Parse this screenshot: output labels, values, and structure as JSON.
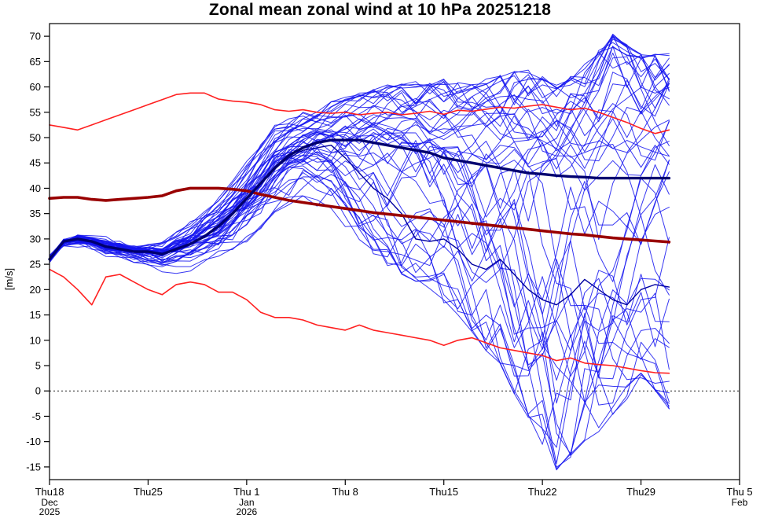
{
  "chart_data": {
    "type": "line",
    "title": "Zonal mean zonal wind at 10 hPa 20251218",
    "xlabel": "",
    "ylabel": "[m/s]",
    "ylim": [
      -17.5,
      72.5
    ],
    "yticks": [
      -15,
      -10,
      -5,
      0,
      5,
      10,
      15,
      20,
      25,
      30,
      35,
      40,
      45,
      50,
      55,
      60,
      65,
      70
    ],
    "zero_line": 0,
    "x_axis_days_total": 49,
    "xticks": [
      {
        "day": 0,
        "label": "Thu18",
        "sub": [
          "Dec",
          "2025"
        ]
      },
      {
        "day": 7,
        "label": "Thu25",
        "sub": []
      },
      {
        "day": 14,
        "label": "Thu 1",
        "sub": [
          "Jan",
          "2026"
        ]
      },
      {
        "day": 21,
        "label": "Thu 8",
        "sub": []
      },
      {
        "day": 28,
        "label": "Thu15",
        "sub": []
      },
      {
        "day": 35,
        "label": "Thu22",
        "sub": []
      },
      {
        "day": 42,
        "label": "Thu29",
        "sub": []
      },
      {
        "day": 49,
        "label": "Thu 5",
        "sub": [
          "Feb"
        ]
      }
    ],
    "days": [
      0,
      1,
      2,
      3,
      4,
      5,
      6,
      7,
      8,
      9,
      10,
      11,
      12,
      13,
      14,
      15,
      16,
      17,
      18,
      19,
      20,
      21,
      22,
      23,
      24,
      25,
      26,
      27,
      28,
      29,
      30,
      31,
      32,
      33,
      34,
      35,
      36,
      37,
      38,
      39,
      40,
      41,
      42,
      43,
      44
    ],
    "series": [
      {
        "name": "climate-max",
        "color": "#ff2020",
        "width": 1.6,
        "values": [
          52.5,
          52,
          51.5,
          52.5,
          53.5,
          54.5,
          55.5,
          56.5,
          57.5,
          58.5,
          58.8,
          58.8,
          57.6,
          57.2,
          57,
          56.5,
          55.5,
          55.2,
          55.5,
          55,
          54.8,
          55,
          54.5,
          54.8,
          55,
          54.5,
          54.8,
          55.2,
          54.6,
          55.4,
          55.2,
          55.6,
          56,
          55.8,
          56.2,
          56.5,
          56,
          55.5,
          55.8,
          55,
          54,
          53,
          51.8,
          50.8,
          51.5
        ]
      },
      {
        "name": "climate-min",
        "color": "#ff2020",
        "width": 1.6,
        "values": [
          24,
          22.5,
          20,
          17,
          22.5,
          23,
          21.5,
          20,
          19,
          21,
          21.5,
          21,
          19.5,
          19.5,
          18,
          15.5,
          14.5,
          14.5,
          14,
          13,
          12.5,
          12,
          13,
          12,
          11.5,
          11,
          10.5,
          10,
          9,
          10,
          10.5,
          9.5,
          8.5,
          8,
          7.5,
          7,
          6,
          6.5,
          5.5,
          5.2,
          5,
          4.5,
          4,
          3.6,
          3.5
        ]
      },
      {
        "name": "control-member",
        "color": "#0000a0",
        "width": 1.4,
        "values": [
          26,
          29.5,
          30,
          29.5,
          28.5,
          28,
          27.5,
          27.5,
          27,
          28,
          29,
          30.5,
          32.5,
          35,
          38,
          41,
          44,
          46,
          47.5,
          48,
          48.5,
          46,
          43,
          40,
          38,
          35,
          30,
          29.5,
          30,
          28,
          25,
          24,
          26,
          23,
          20,
          18,
          17,
          19,
          22,
          20,
          18,
          17,
          20,
          21,
          20.5
        ]
      },
      {
        "name": "climate-mean",
        "color": "#990000",
        "width": 3.6,
        "values": [
          38,
          38.2,
          38.2,
          37.8,
          37.6,
          37.8,
          38,
          38.2,
          38.5,
          39.5,
          40,
          40,
          40,
          39.8,
          39.5,
          38.8,
          38.2,
          37.6,
          37.2,
          36.8,
          36.4,
          36,
          35.6,
          35.2,
          34.9,
          34.6,
          34.3,
          34,
          33.7,
          33.4,
          33.1,
          32.8,
          32.5,
          32.2,
          31.9,
          31.6,
          31.3,
          31,
          30.8,
          30.5,
          30.2,
          30,
          29.8,
          29.6,
          29.4
        ]
      },
      {
        "name": "ensemble-mean",
        "color": "#000070",
        "width": 3.4,
        "values": [
          26,
          29.5,
          30,
          29.5,
          28.5,
          28,
          27.5,
          27.5,
          27,
          28,
          29,
          30.5,
          32.5,
          35,
          38,
          41,
          44,
          46.5,
          48,
          49,
          49.5,
          49.5,
          49.5,
          49,
          48.5,
          48,
          47.5,
          47,
          46,
          45.5,
          45,
          44.5,
          44,
          43.5,
          43,
          42.8,
          42.5,
          42.3,
          42.2,
          42,
          42,
          42,
          42,
          42,
          42
        ]
      }
    ],
    "ensemble": {
      "name": "ensemble-members",
      "color": "#1414f0",
      "width": 1,
      "opacity": 0.85,
      "count": 48,
      "seed": 20251218,
      "walk_step": 0.3,
      "jitter": 0.6,
      "mean": [
        26,
        29.5,
        30,
        29.5,
        28.5,
        28,
        27.5,
        27.5,
        27,
        28,
        29,
        30.5,
        32.5,
        35,
        38,
        41,
        44,
        46.5,
        48,
        49,
        49.5,
        49.5,
        49.5,
        49,
        48.5,
        48,
        47.5,
        47,
        46,
        45.5,
        45,
        44.5,
        44,
        43.5,
        43,
        42.8,
        42.5,
        42.3,
        42.2,
        42,
        42,
        42,
        42,
        42,
        42
      ],
      "upper": [
        26.5,
        29,
        30.5,
        30.2,
        30,
        29.2,
        28.5,
        28.7,
        29,
        31,
        33,
        35.5,
        38,
        41.5,
        45,
        48.5,
        52,
        53.5,
        55,
        56,
        57,
        57.8,
        58.5,
        59.2,
        60,
        60.2,
        60.5,
        60.8,
        61,
        60.5,
        60,
        61,
        62,
        62.5,
        63,
        61.5,
        60,
        62,
        64,
        67,
        70,
        68,
        66,
        66,
        66
      ],
      "lower": [
        25.5,
        28,
        28.5,
        27.5,
        26.5,
        25.8,
        25,
        24.2,
        23.5,
        23.7,
        24,
        25,
        26,
        28,
        30,
        32.5,
        35,
        36.5,
        38,
        37,
        36,
        33,
        30,
        27.5,
        25,
        23.5,
        22,
        20,
        18,
        15,
        12,
        8.5,
        5,
        0,
        -5,
        -10,
        -15,
        -12.5,
        -10,
        -7.5,
        -5,
        -1,
        3,
        0,
        -3
      ]
    },
    "axis_color": "#000000",
    "background": "#ffffff",
    "legend_position": "none",
    "grid": false
  }
}
